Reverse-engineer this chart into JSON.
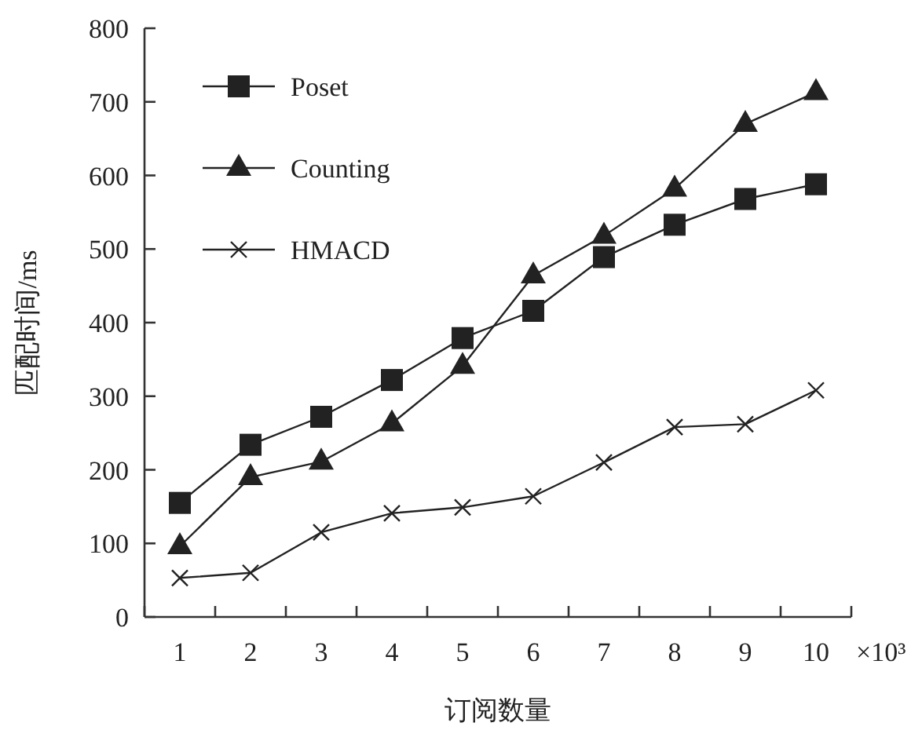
{
  "chart_data": {
    "type": "line",
    "xlabel": "订阅数量",
    "ylabel": "匹配时间/ms",
    "annotations": [
      "×10³"
    ],
    "categories": [
      "1",
      "2",
      "3",
      "4",
      "5",
      "6",
      "7",
      "8",
      "9",
      "10"
    ],
    "ylim": [
      0,
      800
    ],
    "yticks": [
      0,
      100,
      200,
      300,
      400,
      500,
      600,
      700,
      800
    ],
    "grid": false,
    "legend": "top left",
    "series": [
      {
        "name": "Poset",
        "color": "#222222",
        "marker": "square",
        "values": [
          155,
          234,
          272,
          322,
          379,
          416,
          489,
          533,
          568,
          588
        ]
      },
      {
        "name": "Counting",
        "color": "#222222",
        "marker": "triangle",
        "values": [
          96,
          190,
          211,
          263,
          341,
          464,
          518,
          582,
          670,
          713
        ]
      },
      {
        "name": "HMACD",
        "color": "#222222",
        "marker": "cross",
        "values": [
          53,
          60,
          115,
          141,
          149,
          164,
          210,
          258,
          262,
          308
        ]
      }
    ]
  }
}
